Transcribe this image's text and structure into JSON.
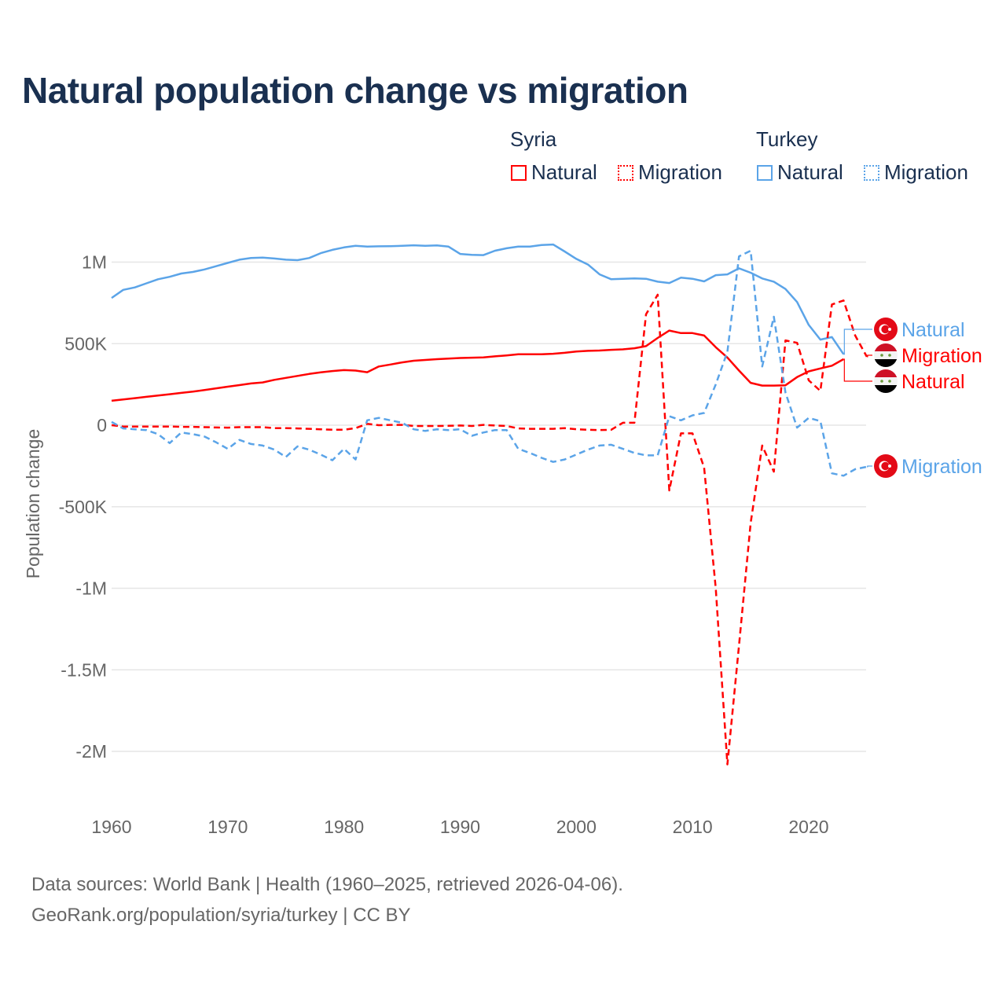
{
  "chart_data": {
    "type": "line",
    "title": "Natural population change vs migration",
    "xlabel": "",
    "ylabel": "Population change",
    "xlim": [
      1960,
      2025
    ],
    "ylim": [
      -2100000,
      1250000
    ],
    "grid": true,
    "x_ticks": [
      1960,
      1970,
      1980,
      1990,
      2000,
      2010,
      2020
    ],
    "x_tick_labels": [
      "1960",
      "1970",
      "1980",
      "1990",
      "2000",
      "2010",
      "2020"
    ],
    "y_ticks": [
      1000000,
      500000,
      0,
      -500000,
      -1000000,
      -1500000,
      -2000000
    ],
    "y_tick_labels": [
      "1M",
      "500K",
      "0",
      "-500K",
      "-1M",
      "-1.5M",
      "-2M"
    ],
    "legend": {
      "placement": "top-right",
      "groups": [
        {
          "name": "Syria",
          "items": [
            "Natural",
            "Migration"
          ]
        },
        {
          "name": "Turkey",
          "items": [
            "Natural",
            "Migration"
          ]
        }
      ]
    },
    "colors": {
      "syria": "#ff0000",
      "turkey": "#5ba4e8"
    },
    "series": [
      {
        "name": "Turkey Natural",
        "country": "Turkey",
        "kind": "Natural",
        "dashed": false,
        "start_year": 1960,
        "end_label": "Natural",
        "values": [
          780,
          830,
          845,
          870,
          895,
          910,
          930,
          940,
          955,
          975,
          995,
          1015,
          1025,
          1028,
          1022,
          1015,
          1012,
          1025,
          1055,
          1075,
          1090,
          1100,
          1095,
          1097,
          1098,
          1100,
          1103,
          1100,
          1102,
          1095,
          1050,
          1045,
          1043,
          1070,
          1085,
          1095,
          1095,
          1105,
          1108,
          1065,
          1020,
          985,
          925,
          895,
          898,
          900,
          898,
          880,
          872,
          905,
          898,
          882,
          920,
          925,
          962,
          935,
          900,
          880,
          835,
          755,
          615,
          525,
          540,
          435
        ]
      },
      {
        "name": "Syria Migration",
        "country": "Syria",
        "kind": "Migration",
        "dashed": true,
        "start_year": 1960,
        "end_label": "Migration",
        "values": [
          0,
          -8,
          -8,
          -8,
          -8,
          -8,
          -10,
          -10,
          -12,
          -14,
          -15,
          -12,
          -12,
          -12,
          -18,
          -18,
          -20,
          -22,
          -25,
          -28,
          -28,
          -18,
          8,
          0,
          2,
          2,
          -5,
          -5,
          -5,
          -4,
          -2,
          -5,
          2,
          -2,
          -5,
          -20,
          -22,
          -22,
          -22,
          -18,
          -25,
          -28,
          -30,
          -28,
          15,
          15,
          680,
          800,
          -400,
          -50,
          -50,
          -260,
          -1000,
          -2080,
          -1350,
          -600,
          -125,
          -285,
          520,
          505,
          275,
          210,
          740,
          765,
          550,
          420
        ]
      },
      {
        "name": "Syria Natural",
        "country": "Syria",
        "kind": "Natural",
        "dashed": false,
        "start_year": 1960,
        "end_label": "Natural",
        "values": [
          150,
          158,
          166,
          174,
          182,
          190,
          198,
          206,
          216,
          226,
          236,
          246,
          256,
          262,
          278,
          290,
          302,
          314,
          324,
          332,
          338,
          335,
          325,
          360,
          372,
          385,
          395,
          400,
          405,
          408,
          412,
          414,
          416,
          422,
          428,
          435,
          435,
          435,
          438,
          444,
          452,
          456,
          458,
          462,
          465,
          472,
          485,
          535,
          580,
          565,
          565,
          550,
          478,
          415,
          335,
          260,
          243,
          243,
          245,
          295,
          330,
          348,
          365,
          405
        ]
      },
      {
        "name": "Turkey Migration",
        "country": "Turkey",
        "kind": "Migration",
        "dashed": true,
        "start_year": 1960,
        "end_label": "Migration",
        "values": [
          20,
          -20,
          -25,
          -30,
          -55,
          -110,
          -45,
          -55,
          -70,
          -105,
          -145,
          -90,
          -115,
          -125,
          -150,
          -195,
          -130,
          -150,
          -180,
          -215,
          -145,
          -210,
          30,
          45,
          30,
          15,
          -25,
          -35,
          -25,
          -30,
          -25,
          -65,
          -45,
          -30,
          -30,
          -145,
          -170,
          -200,
          -225,
          -210,
          -180,
          -150,
          -125,
          -120,
          -145,
          -170,
          -185,
          -185,
          55,
          30,
          60,
          75,
          250,
          450,
          1035,
          1070,
          360,
          665,
          200,
          -15,
          45,
          25,
          -295,
          -310,
          -270,
          -255
        ]
      }
    ],
    "value_units": "thousands"
  },
  "footer": {
    "line1": "Data sources: World Bank | Health (1960–2025, retrieved 2026-04-06).",
    "line2": "GeoRank.org/population/syria/turkey | CC BY"
  }
}
